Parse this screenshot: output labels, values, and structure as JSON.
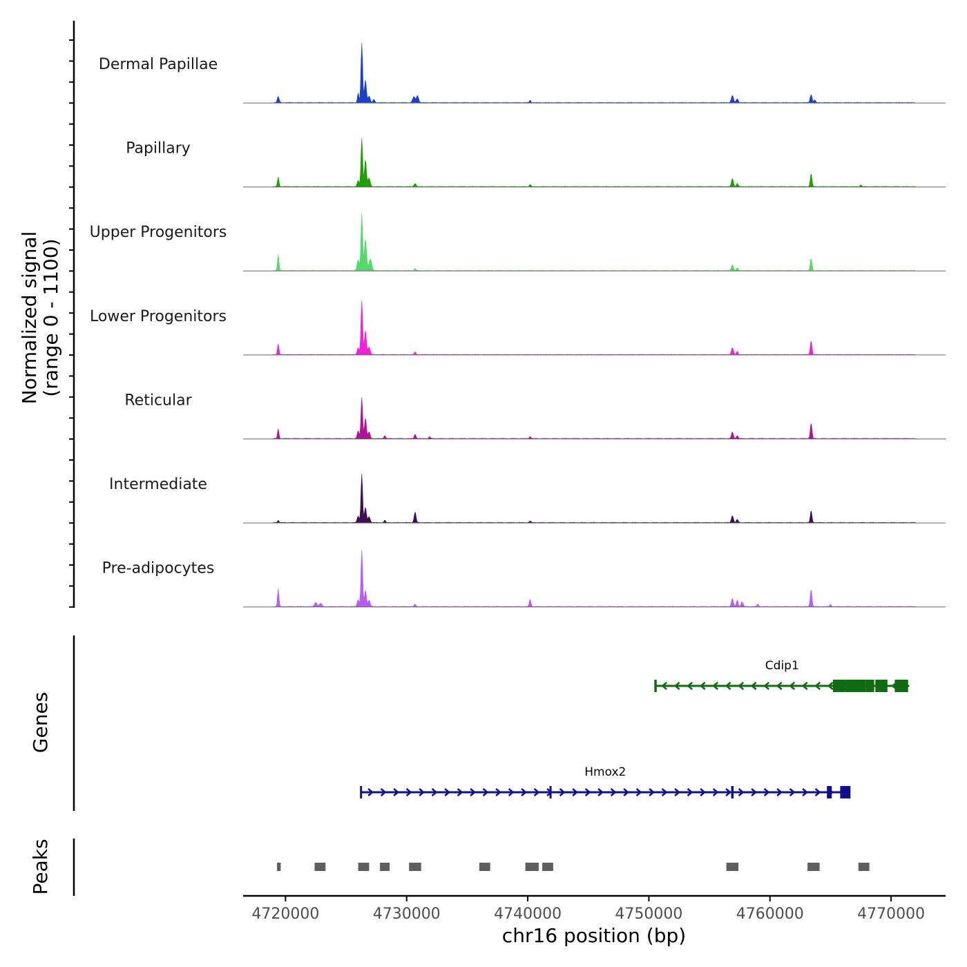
{
  "chart_data": {
    "type": "area",
    "title": "",
    "chromosome": "chr16",
    "xlabel": "chr16 position (bp)",
    "ylabel": "Normalized signal\n(range 0 - 1100)",
    "ylabel_lines": [
      "Normalized signal",
      "(range 0 - 1100)"
    ],
    "y_range": [
      0,
      1100
    ],
    "xlim": [
      4716500,
      4774500
    ],
    "x_ticks": [
      4720000,
      4730000,
      4740000,
      4750000,
      4760000,
      4770000
    ],
    "x_tick_labels": [
      "4720000",
      "4730000",
      "4740000",
      "4750000",
      "4760000",
      "4770000"
    ],
    "signal_x_range": [
      4719000,
      4772000
    ],
    "section_titles": {
      "genes": "Genes",
      "peaks": "Peaks"
    },
    "series": [
      {
        "name": "Dermal Papillae",
        "color": "#1a3fcc",
        "peaks": [
          {
            "x": 4719400,
            "y": 110,
            "w": 80
          },
          {
            "x": 4726000,
            "y": 180,
            "w": 60
          },
          {
            "x": 4726300,
            "y": 1100,
            "w": 70
          },
          {
            "x": 4726600,
            "y": 420,
            "w": 80
          },
          {
            "x": 4726900,
            "y": 120,
            "w": 90
          },
          {
            "x": 4727300,
            "y": 60,
            "w": 70
          },
          {
            "x": 4730600,
            "y": 110,
            "w": 100
          },
          {
            "x": 4730900,
            "y": 130,
            "w": 90
          },
          {
            "x": 4740200,
            "y": 45,
            "w": 60
          },
          {
            "x": 4756900,
            "y": 130,
            "w": 90
          },
          {
            "x": 4757300,
            "y": 70,
            "w": 80
          },
          {
            "x": 4763400,
            "y": 150,
            "w": 80
          },
          {
            "x": 4763700,
            "y": 50,
            "w": 60
          }
        ]
      },
      {
        "name": "Papillary",
        "color": "#1f9e00",
        "peaks": [
          {
            "x": 4719400,
            "y": 180,
            "w": 60
          },
          {
            "x": 4726000,
            "y": 120,
            "w": 70
          },
          {
            "x": 4726300,
            "y": 900,
            "w": 70
          },
          {
            "x": 4726600,
            "y": 500,
            "w": 80
          },
          {
            "x": 4726900,
            "y": 160,
            "w": 90
          },
          {
            "x": 4730700,
            "y": 60,
            "w": 80
          },
          {
            "x": 4740200,
            "y": 45,
            "w": 60
          },
          {
            "x": 4756900,
            "y": 150,
            "w": 80
          },
          {
            "x": 4757300,
            "y": 60,
            "w": 70
          },
          {
            "x": 4763400,
            "y": 240,
            "w": 70
          },
          {
            "x": 4767500,
            "y": 35,
            "w": 60
          }
        ]
      },
      {
        "name": "Upper Progenitors",
        "color": "#55d96a",
        "peaks": [
          {
            "x": 4719400,
            "y": 300,
            "w": 60
          },
          {
            "x": 4726000,
            "y": 200,
            "w": 90
          },
          {
            "x": 4726300,
            "y": 1050,
            "w": 70
          },
          {
            "x": 4726600,
            "y": 580,
            "w": 90
          },
          {
            "x": 4727000,
            "y": 220,
            "w": 110
          },
          {
            "x": 4730700,
            "y": 40,
            "w": 60
          },
          {
            "x": 4756900,
            "y": 110,
            "w": 80
          },
          {
            "x": 4757300,
            "y": 50,
            "w": 70
          },
          {
            "x": 4763400,
            "y": 230,
            "w": 70
          }
        ]
      },
      {
        "name": "Lower Progenitors",
        "color": "#f022d8",
        "peaks": [
          {
            "x": 4719400,
            "y": 200,
            "w": 60
          },
          {
            "x": 4726000,
            "y": 130,
            "w": 80
          },
          {
            "x": 4726300,
            "y": 1000,
            "w": 70
          },
          {
            "x": 4726600,
            "y": 450,
            "w": 80
          },
          {
            "x": 4726900,
            "y": 140,
            "w": 90
          },
          {
            "x": 4730700,
            "y": 50,
            "w": 60
          },
          {
            "x": 4756900,
            "y": 130,
            "w": 80
          },
          {
            "x": 4757300,
            "y": 60,
            "w": 70
          },
          {
            "x": 4763400,
            "y": 260,
            "w": 70
          }
        ]
      },
      {
        "name": "Reticular",
        "color": "#b0129a",
        "peaks": [
          {
            "x": 4719400,
            "y": 180,
            "w": 60
          },
          {
            "x": 4726000,
            "y": 140,
            "w": 80
          },
          {
            "x": 4726300,
            "y": 760,
            "w": 70
          },
          {
            "x": 4726600,
            "y": 380,
            "w": 80
          },
          {
            "x": 4726900,
            "y": 120,
            "w": 90
          },
          {
            "x": 4728200,
            "y": 55,
            "w": 70
          },
          {
            "x": 4730700,
            "y": 80,
            "w": 70
          },
          {
            "x": 4731900,
            "y": 35,
            "w": 60
          },
          {
            "x": 4740200,
            "y": 40,
            "w": 60
          },
          {
            "x": 4756900,
            "y": 120,
            "w": 80
          },
          {
            "x": 4757300,
            "y": 55,
            "w": 70
          },
          {
            "x": 4763400,
            "y": 290,
            "w": 70
          }
        ]
      },
      {
        "name": "Intermediate",
        "color": "#3d0f57",
        "peaks": [
          {
            "x": 4719400,
            "y": 40,
            "w": 60
          },
          {
            "x": 4726000,
            "y": 120,
            "w": 80
          },
          {
            "x": 4726300,
            "y": 900,
            "w": 70
          },
          {
            "x": 4726600,
            "y": 280,
            "w": 80
          },
          {
            "x": 4726900,
            "y": 110,
            "w": 90
          },
          {
            "x": 4728200,
            "y": 45,
            "w": 60
          },
          {
            "x": 4730700,
            "y": 190,
            "w": 80
          },
          {
            "x": 4740200,
            "y": 30,
            "w": 60
          },
          {
            "x": 4756900,
            "y": 130,
            "w": 80
          },
          {
            "x": 4757300,
            "y": 60,
            "w": 70
          },
          {
            "x": 4763400,
            "y": 220,
            "w": 70
          }
        ]
      },
      {
        "name": "Pre-adipocytes",
        "color": "#b85ef0",
        "peaks": [
          {
            "x": 4719400,
            "y": 330,
            "w": 60
          },
          {
            "x": 4722500,
            "y": 80,
            "w": 100
          },
          {
            "x": 4722900,
            "y": 60,
            "w": 100
          },
          {
            "x": 4726000,
            "y": 130,
            "w": 80
          },
          {
            "x": 4726300,
            "y": 1050,
            "w": 70
          },
          {
            "x": 4726600,
            "y": 300,
            "w": 80
          },
          {
            "x": 4726900,
            "y": 120,
            "w": 90
          },
          {
            "x": 4730700,
            "y": 45,
            "w": 60
          },
          {
            "x": 4740200,
            "y": 130,
            "w": 70
          },
          {
            "x": 4756900,
            "y": 150,
            "w": 80
          },
          {
            "x": 4757300,
            "y": 120,
            "w": 70
          },
          {
            "x": 4757700,
            "y": 90,
            "w": 80
          },
          {
            "x": 4759000,
            "y": 50,
            "w": 60
          },
          {
            "x": 4763400,
            "y": 320,
            "w": 70
          },
          {
            "x": 4765000,
            "y": 40,
            "w": 60
          }
        ]
      }
    ],
    "genes": [
      {
        "name": "Cdip1",
        "strand": "-",
        "start": 4750500,
        "end": 4771500,
        "color": "#0f6b0f",
        "exons": [
          [
            4750450,
            4750650
          ],
          [
            4765200,
            4766200
          ],
          [
            4766200,
            4767900
          ],
          [
            4767900,
            4768600
          ],
          [
            4768700,
            4769700
          ],
          [
            4770300,
            4771400
          ]
        ]
      },
      {
        "name": "Hmox2",
        "strand": "+",
        "start": 4726200,
        "end": 4766600,
        "color": "#10108f",
        "exons": [
          [
            4726150,
            4726300
          ],
          [
            4741800,
            4741950
          ],
          [
            4756800,
            4757000
          ],
          [
            4764700,
            4765100
          ],
          [
            4765800,
            4766650
          ]
        ]
      }
    ],
    "peak_regions": [
      [
        4719300,
        4719600
      ],
      [
        4722400,
        4723300
      ],
      [
        4726000,
        4726900
      ],
      [
        4727800,
        4728600
      ],
      [
        4730200,
        4731200
      ],
      [
        4736000,
        4736900
      ],
      [
        4739800,
        4740900
      ],
      [
        4741200,
        4742100
      ],
      [
        4756400,
        4757400
      ],
      [
        4763100,
        4764100
      ],
      [
        4767300,
        4768200
      ]
    ],
    "peak_color": "#5e5e5e"
  }
}
